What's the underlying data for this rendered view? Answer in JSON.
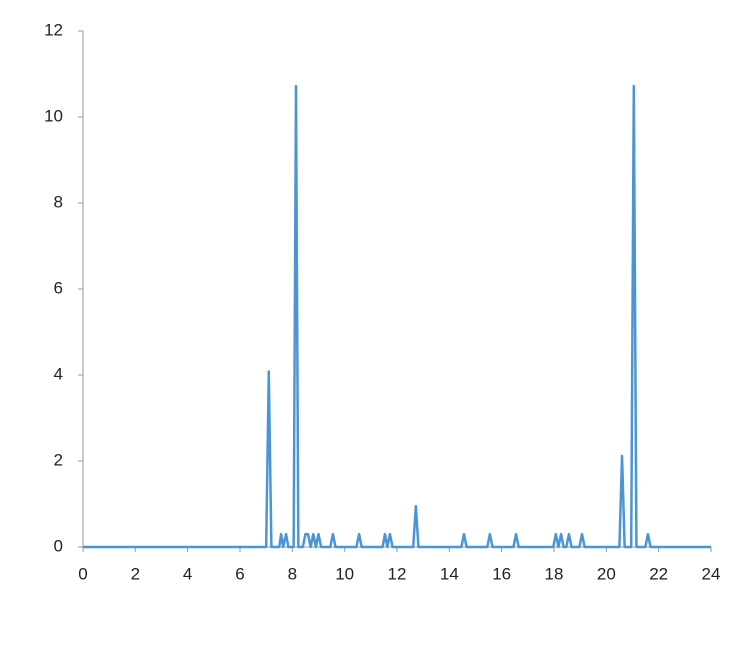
{
  "chart_data": {
    "type": "line",
    "x": [
      0,
      7.0,
      7.1,
      7.2,
      7.5,
      7.57,
      7.65,
      7.76,
      7.85,
      8.05,
      8.14,
      8.23,
      8.4,
      8.5,
      8.6,
      8.7,
      8.8,
      8.9,
      9.0,
      9.1,
      9.45,
      9.55,
      9.65,
      10.45,
      10.55,
      10.65,
      11.45,
      11.54,
      11.63,
      11.73,
      11.83,
      12.62,
      12.72,
      12.82,
      14.46,
      14.56,
      14.66,
      15.45,
      15.55,
      15.65,
      16.45,
      16.55,
      16.65,
      17.97,
      18.07,
      18.17,
      18.27,
      18.37,
      18.47,
      18.57,
      18.67,
      18.97,
      19.07,
      19.17,
      20.5,
      20.6,
      20.7,
      20.95,
      21.05,
      21.15,
      21.49,
      21.59,
      21.69,
      24
    ],
    "series": [
      {
        "color": "#4a96d4",
        "values": [
          0,
          0,
          4.08,
          0,
          0,
          0.3,
          0,
          0.3,
          0,
          0,
          10.72,
          0,
          0,
          0.3,
          0.3,
          0,
          0.3,
          0,
          0.3,
          0,
          0,
          0.3,
          0,
          0,
          0.3,
          0,
          0,
          0.3,
          0,
          0.3,
          0,
          0,
          0.95,
          0,
          0,
          0.3,
          0,
          0,
          0.3,
          0,
          0,
          0.3,
          0,
          0,
          0.3,
          0,
          0.3,
          0,
          0,
          0.3,
          0,
          0,
          0.3,
          0,
          0,
          2.12,
          0,
          0,
          10.72,
          0,
          0,
          0.3,
          0,
          0
        ]
      }
    ],
    "xlim": [
      0,
      24
    ],
    "xticks": [
      0,
      2,
      4,
      6,
      8,
      10,
      12,
      14,
      16,
      18,
      20,
      22,
      24
    ],
    "ylim": [
      0,
      12
    ],
    "yticks": [
      0,
      2,
      4,
      6,
      8,
      10,
      12
    ]
  }
}
